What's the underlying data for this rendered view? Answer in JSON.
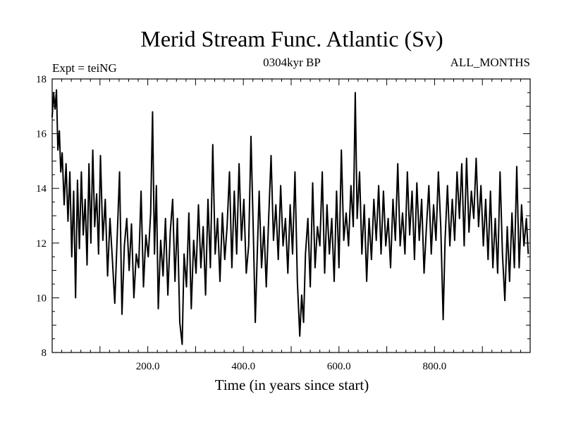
{
  "chart_data": {
    "type": "line",
    "title": "Merid Stream Func. Atlantic (Sv)",
    "subtitle_left": "Expt = teiNG",
    "subtitle_center": "0304kyr BP",
    "subtitle_right": "ALL_MONTHS",
    "xlabel": "Time (in years since start)",
    "ylabel": "",
    "xlim": [
      0,
      1000
    ],
    "ylim": [
      8,
      18
    ],
    "x_ticks": [
      200,
      400,
      600,
      800
    ],
    "x_tick_labels": [
      "200.0",
      "400.0",
      "600.0",
      "800.0"
    ],
    "y_ticks": [
      8,
      10,
      12,
      14,
      16,
      18
    ],
    "y_tick_labels": [
      "8",
      "10",
      "12",
      "14",
      "16",
      "18"
    ],
    "grid": false,
    "series": [
      {
        "name": "Merid Stream Func. Atlantic",
        "color": "#000000",
        "points": [
          [
            0,
            16.6
          ],
          [
            3,
            17.5
          ],
          [
            6,
            16.9
          ],
          [
            9,
            17.6
          ],
          [
            12,
            15.4
          ],
          [
            15,
            16.1
          ],
          [
            18,
            14.6
          ],
          [
            21,
            15.3
          ],
          [
            25,
            13.4
          ],
          [
            29,
            14.9
          ],
          [
            33,
            12.8
          ],
          [
            37,
            14.6
          ],
          [
            41,
            11.5
          ],
          [
            45,
            13.9
          ],
          [
            49,
            10.0
          ],
          [
            53,
            14.3
          ],
          [
            57,
            11.8
          ],
          [
            61,
            14.6
          ],
          [
            65,
            12.3
          ],
          [
            69,
            13.6
          ],
          [
            73,
            11.2
          ],
          [
            77,
            14.9
          ],
          [
            81,
            12.0
          ],
          [
            85,
            15.4
          ],
          [
            89,
            12.6
          ],
          [
            93,
            13.8
          ],
          [
            97,
            11.6
          ],
          [
            101,
            15.2
          ],
          [
            106,
            12.1
          ],
          [
            111,
            13.6
          ],
          [
            116,
            10.8
          ],
          [
            121,
            12.9
          ],
          [
            126,
            11.4
          ],
          [
            131,
            9.8
          ],
          [
            136,
            12.2
          ],
          [
            141,
            14.6
          ],
          [
            146,
            9.4
          ],
          [
            151,
            11.9
          ],
          [
            156,
            12.9
          ],
          [
            161,
            11.0
          ],
          [
            166,
            12.7
          ],
          [
            171,
            10.0
          ],
          [
            176,
            11.6
          ],
          [
            181,
            11.1
          ],
          [
            186,
            13.9
          ],
          [
            191,
            10.4
          ],
          [
            196,
            12.3
          ],
          [
            201,
            11.5
          ],
          [
            206,
            13.1
          ],
          [
            210,
            16.8
          ],
          [
            214,
            11.6
          ],
          [
            218,
            14.1
          ],
          [
            222,
            9.6
          ],
          [
            227,
            12.1
          ],
          [
            232,
            10.8
          ],
          [
            237,
            12.9
          ],
          [
            242,
            10.1
          ],
          [
            247,
            12.4
          ],
          [
            252,
            13.6
          ],
          [
            257,
            10.6
          ],
          [
            262,
            12.9
          ],
          [
            267,
            9.1
          ],
          [
            272,
            8.3
          ],
          [
            276,
            11.6
          ],
          [
            281,
            10.4
          ],
          [
            286,
            13.1
          ],
          [
            291,
            9.6
          ],
          [
            296,
            12.1
          ],
          [
            301,
            10.9
          ],
          [
            306,
            13.4
          ],
          [
            311,
            11.1
          ],
          [
            316,
            12.6
          ],
          [
            321,
            10.1
          ],
          [
            326,
            13.6
          ],
          [
            331,
            11.1
          ],
          [
            336,
            15.6
          ],
          [
            341,
            11.6
          ],
          [
            346,
            12.9
          ],
          [
            351,
            10.6
          ],
          [
            356,
            13.1
          ],
          [
            361,
            11.4
          ],
          [
            366,
            12.6
          ],
          [
            371,
            14.6
          ],
          [
            376,
            11.1
          ],
          [
            381,
            13.9
          ],
          [
            386,
            11.6
          ],
          [
            391,
            14.9
          ],
          [
            396,
            12.1
          ],
          [
            401,
            13.6
          ],
          [
            406,
            10.9
          ],
          [
            411,
            11.9
          ],
          [
            416,
            15.9
          ],
          [
            421,
            12.3
          ],
          [
            425,
            9.1
          ],
          [
            429,
            11.6
          ],
          [
            433,
            13.9
          ],
          [
            438,
            11.1
          ],
          [
            443,
            12.6
          ],
          [
            448,
            10.4
          ],
          [
            453,
            12.9
          ],
          [
            458,
            15.2
          ],
          [
            463,
            12.1
          ],
          [
            468,
            13.4
          ],
          [
            473,
            11.4
          ],
          [
            478,
            14.1
          ],
          [
            483,
            11.9
          ],
          [
            488,
            12.9
          ],
          [
            493,
            10.9
          ],
          [
            498,
            13.4
          ],
          [
            503,
            11.6
          ],
          [
            508,
            14.6
          ],
          [
            513,
            10.6
          ],
          [
            518,
            8.6
          ],
          [
            522,
            10.1
          ],
          [
            526,
            9.1
          ],
          [
            530,
            11.6
          ],
          [
            535,
            12.9
          ],
          [
            540,
            10.4
          ],
          [
            545,
            14.2
          ],
          [
            550,
            11.1
          ],
          [
            555,
            12.6
          ],
          [
            560,
            11.9
          ],
          [
            565,
            14.6
          ],
          [
            570,
            10.9
          ],
          [
            575,
            13.4
          ],
          [
            580,
            11.6
          ],
          [
            585,
            12.9
          ],
          [
            590,
            10.6
          ],
          [
            595,
            13.9
          ],
          [
            600,
            11.1
          ],
          [
            605,
            15.4
          ],
          [
            610,
            12.1
          ],
          [
            615,
            13.1
          ],
          [
            620,
            11.9
          ],
          [
            625,
            14.1
          ],
          [
            630,
            12.6
          ],
          [
            634,
            17.5
          ],
          [
            638,
            12.9
          ],
          [
            643,
            14.6
          ],
          [
            648,
            11.6
          ],
          [
            653,
            13.4
          ],
          [
            658,
            10.6
          ],
          [
            663,
            12.9
          ],
          [
            668,
            11.4
          ],
          [
            673,
            13.6
          ],
          [
            678,
            12.1
          ],
          [
            683,
            14.1
          ],
          [
            688,
            11.6
          ],
          [
            693,
            13.9
          ],
          [
            698,
            11.9
          ],
          [
            703,
            12.9
          ],
          [
            708,
            11.1
          ],
          [
            713,
            13.6
          ],
          [
            718,
            12.1
          ],
          [
            723,
            14.9
          ],
          [
            728,
            11.9
          ],
          [
            733,
            13.1
          ],
          [
            738,
            11.6
          ],
          [
            743,
            14.6
          ],
          [
            748,
            12.3
          ],
          [
            753,
            13.9
          ],
          [
            758,
            11.4
          ],
          [
            763,
            14.2
          ],
          [
            768,
            12.1
          ],
          [
            773,
            13.6
          ],
          [
            778,
            10.9
          ],
          [
            783,
            12.6
          ],
          [
            788,
            14.1
          ],
          [
            793,
            11.6
          ],
          [
            798,
            13.4
          ],
          [
            803,
            12.1
          ],
          [
            808,
            14.6
          ],
          [
            813,
            12.6
          ],
          [
            818,
            9.2
          ],
          [
            822,
            12.1
          ],
          [
            827,
            14.1
          ],
          [
            832,
            11.9
          ],
          [
            837,
            13.6
          ],
          [
            842,
            12.1
          ],
          [
            847,
            14.6
          ],
          [
            852,
            12.9
          ],
          [
            857,
            14.9
          ],
          [
            862,
            11.9
          ],
          [
            867,
            15.1
          ],
          [
            872,
            12.4
          ],
          [
            877,
            13.9
          ],
          [
            882,
            12.9
          ],
          [
            887,
            15.1
          ],
          [
            892,
            12.6
          ],
          [
            897,
            14.1
          ],
          [
            902,
            11.9
          ],
          [
            907,
            13.6
          ],
          [
            912,
            11.4
          ],
          [
            917,
            13.9
          ],
          [
            922,
            11.1
          ],
          [
            927,
            12.9
          ],
          [
            932,
            10.9
          ],
          [
            937,
            14.6
          ],
          [
            942,
            11.6
          ],
          [
            947,
            9.9
          ],
          [
            952,
            12.6
          ],
          [
            957,
            10.6
          ],
          [
            962,
            13.1
          ],
          [
            967,
            11.1
          ],
          [
            972,
            14.8
          ],
          [
            977,
            11.1
          ],
          [
            982,
            13.4
          ],
          [
            987,
            11.9
          ],
          [
            992,
            12.9
          ],
          [
            996,
            11.6
          ]
        ]
      }
    ]
  }
}
